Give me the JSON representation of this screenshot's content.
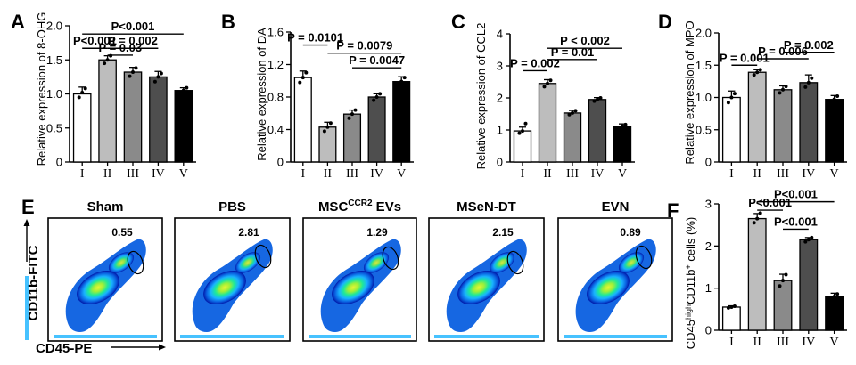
{
  "chart_data": [
    {
      "panel": "A",
      "type": "bar",
      "ylabel": "Relative expression of 8-OHG",
      "categories": [
        "I",
        "II",
        "III",
        "IV",
        "V"
      ],
      "values": [
        1.0,
        1.5,
        1.32,
        1.25,
        1.05
      ],
      "errors": [
        0.1,
        0.06,
        0.07,
        0.08,
        0.04
      ],
      "points": [
        [
          0.95,
          1.02,
          1.08
        ],
        [
          1.45,
          1.5,
          1.56
        ],
        [
          1.26,
          1.32,
          1.38
        ],
        [
          1.18,
          1.25,
          1.3
        ],
        [
          1.0,
          1.05,
          1.09
        ]
      ],
      "ylim": [
        0,
        2.0
      ],
      "yticks": [
        "0",
        "0.5",
        "1.0",
        "1.5",
        "2.0"
      ],
      "ytick_values": [
        0,
        0.5,
        1.0,
        1.5,
        2.0
      ],
      "brackets": [
        {
          "from": 0,
          "to": 4,
          "label": "P<0.001",
          "y": 1.88
        },
        {
          "from": 0,
          "to": 1,
          "label": "P<0.001",
          "y": 1.67
        },
        {
          "from": 1,
          "to": 3,
          "label": "P = 0.002",
          "y": 1.67
        },
        {
          "from": 1,
          "to": 2,
          "label": "P = 0.03",
          "y": 1.57
        }
      ]
    },
    {
      "panel": "B",
      "type": "bar",
      "ylabel": "Relative expression of DA",
      "categories": [
        "I",
        "II",
        "III",
        "IV",
        "V"
      ],
      "values": [
        1.04,
        0.43,
        0.59,
        0.8,
        0.99
      ],
      "errors": [
        0.08,
        0.06,
        0.05,
        0.04,
        0.06
      ],
      "points": [
        [
          0.98,
          1.04,
          1.1
        ],
        [
          0.38,
          0.43,
          0.48
        ],
        [
          0.54,
          0.59,
          0.64
        ],
        [
          0.76,
          0.8,
          0.84
        ],
        [
          0.94,
          0.99,
          1.04
        ]
      ],
      "ylim": [
        0,
        1.6
      ],
      "yticks": [
        "0",
        "0.4",
        "0.8",
        "1.2",
        "1.6"
      ],
      "ytick_values": [
        0,
        0.4,
        0.8,
        1.2,
        1.6
      ],
      "brackets": [
        {
          "from": 0,
          "to": 1,
          "label": "P = 0.0101",
          "y": 1.44
        },
        {
          "from": 1,
          "to": 4,
          "label": "P = 0.0079",
          "y": 1.34
        },
        {
          "from": 2,
          "to": 4,
          "label": "P = 0.0047",
          "y": 1.16
        }
      ]
    },
    {
      "panel": "C",
      "type": "bar",
      "ylabel": "Relative expression of CCL2",
      "categories": [
        "I",
        "II",
        "III",
        "IV",
        "V"
      ],
      "values": [
        0.97,
        2.45,
        1.53,
        1.95,
        1.12
      ],
      "errors": [
        0.12,
        0.12,
        0.08,
        0.06,
        0.07
      ],
      "points": [
        [
          0.9,
          0.97,
          1.2
        ],
        [
          2.35,
          2.45,
          2.55
        ],
        [
          1.48,
          1.53,
          1.6
        ],
        [
          1.9,
          1.95,
          2.0
        ],
        [
          1.07,
          1.12,
          1.17
        ]
      ],
      "ylim": [
        0,
        4
      ],
      "yticks": [
        "0",
        "1",
        "2",
        "3",
        "4"
      ],
      "ytick_values": [
        0,
        1,
        2,
        3,
        4
      ],
      "brackets": [
        {
          "from": 1,
          "to": 4,
          "label": "P < 0.002",
          "y": 3.55
        },
        {
          "from": 0,
          "to": 1,
          "label": "P = 0.002",
          "y": 2.85
        },
        {
          "from": 1,
          "to": 3,
          "label": "P = 0.01",
          "y": 3.2
        }
      ]
    },
    {
      "panel": "D",
      "type": "bar",
      "ylabel": "Relative expression of MPO",
      "categories": [
        "I",
        "II",
        "III",
        "IV",
        "V"
      ],
      "values": [
        1.0,
        1.39,
        1.12,
        1.23,
        0.97
      ],
      "errors": [
        0.1,
        0.04,
        0.06,
        0.12,
        0.06
      ],
      "points": [
        [
          0.92,
          1.0,
          1.06
        ],
        [
          1.35,
          1.39,
          1.43
        ],
        [
          1.07,
          1.12,
          1.17
        ],
        [
          1.16,
          1.23,
          1.3
        ],
        [
          0.92,
          0.97,
          1.02
        ]
      ],
      "ylim": [
        0,
        2.0
      ],
      "yticks": [
        "0",
        "0.5",
        "1.0",
        "1.5",
        "2.0"
      ],
      "ytick_values": [
        0,
        0.5,
        1.0,
        1.5,
        2.0
      ],
      "brackets": [
        {
          "from": 2,
          "to": 4,
          "label": "P = 0.002",
          "y": 1.7
        },
        {
          "from": 1,
          "to": 3,
          "label": "P = 0.006",
          "y": 1.6
        },
        {
          "from": 0,
          "to": 1,
          "label": "P = 0.001",
          "y": 1.5
        }
      ]
    },
    {
      "panel": "E",
      "type": "scatter",
      "xlabel": "CD45-PE",
      "ylabel": "CD11b-FITC",
      "plots": [
        {
          "name": "Sham",
          "value": "0.55"
        },
        {
          "name": "PBS",
          "value": "2.81"
        },
        {
          "name": "MSC",
          "name_sup": "CCR2",
          "name_suffix": " EVs",
          "value": "1.29"
        },
        {
          "name": "MSeN-DT",
          "value": "2.15"
        },
        {
          "name": "EVN",
          "value": "0.89"
        }
      ]
    },
    {
      "panel": "F",
      "type": "bar",
      "ylabel": "CD45highCD11b+ cells (%)",
      "ylabel_parts": {
        "a": "CD45",
        "b": "high",
        "c": "CD11b",
        "d": "+",
        "e": " cells (%)"
      },
      "categories": [
        "I",
        "II",
        "III",
        "IV",
        "V"
      ],
      "values": [
        0.55,
        2.65,
        1.18,
        2.15,
        0.8
      ],
      "errors": [
        0.03,
        0.12,
        0.15,
        0.05,
        0.08
      ],
      "points": [
        [
          0.53,
          0.55,
          0.57
        ],
        [
          2.55,
          2.65,
          2.78
        ],
        [
          1.05,
          1.18,
          1.32
        ],
        [
          2.1,
          2.15,
          2.2
        ],
        [
          0.74,
          0.8,
          0.86
        ]
      ],
      "ylim": [
        0,
        3
      ],
      "yticks": [
        "0",
        "1",
        "2",
        "3"
      ],
      "ytick_values": [
        0,
        1,
        2,
        3
      ],
      "brackets": [
        {
          "from": 1,
          "to": 4,
          "label": "P<0.001",
          "y": 3.05
        },
        {
          "from": 1,
          "to": 2,
          "label": "P<0.001",
          "y": 2.85
        },
        {
          "from": 2,
          "to": 3,
          "label": "P<0.001",
          "y": 2.4
        }
      ]
    }
  ],
  "colors": {
    "bars": [
      "#ffffff",
      "#bdbdbd",
      "#8a8a8a",
      "#4e4e4e",
      "#000000"
    ],
    "density": [
      "#0018a8",
      "#0a5fe0",
      "#19b3ff",
      "#1ee89a",
      "#9cf03a",
      "#e8f534"
    ]
  }
}
